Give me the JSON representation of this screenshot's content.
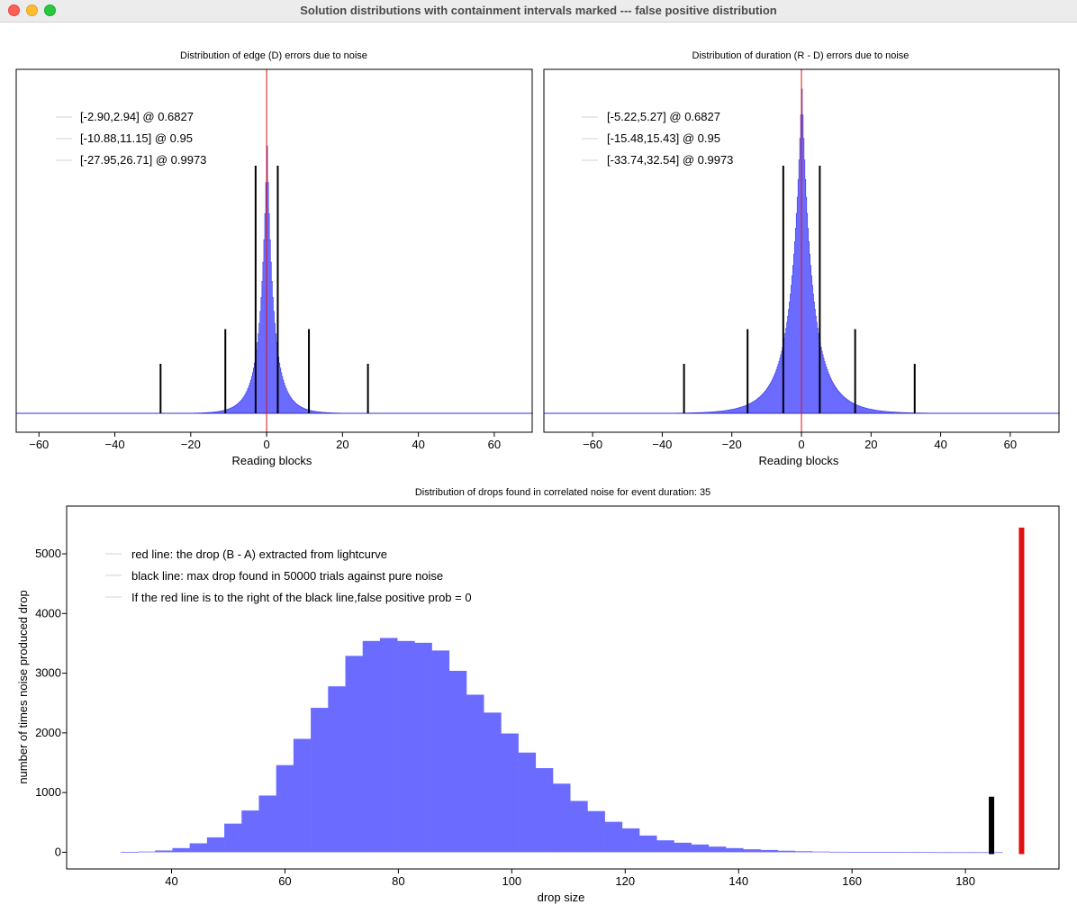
{
  "window": {
    "title": "Solution distributions with containment intervals marked --- false positive distribution"
  },
  "colors": {
    "histogram_fill": "#6b6bff",
    "histogram_edge": "#4040e0",
    "red_line": "#e01010",
    "black_line": "#000000",
    "legend_swatch": "#d0d0e0"
  },
  "chart_data": [
    {
      "type": "bar",
      "title": "Distribution of edge (D) errors due to noise",
      "xlabel": "Reading blocks",
      "ylabel": "",
      "xlim": [
        -66,
        70
      ],
      "xticks": [
        -60,
        -40,
        -20,
        0,
        20,
        40,
        60
      ],
      "xtick_labels": [
        "−60",
        "−40",
        "−20",
        "0",
        "20",
        "40",
        "60"
      ],
      "y_axis_visible": false,
      "distribution": {
        "center": 0.0,
        "peak_relative_to_interval_line": 1.08,
        "scale_core": 1.3,
        "scale_tail": 3.2
      },
      "center_line": {
        "x": 0,
        "color": "red"
      },
      "interval_lines": [
        {
          "low": -2.9,
          "high": 2.94,
          "confidence": 0.6827,
          "relative_height": 1.0
        },
        {
          "low": -10.88,
          "high": 11.15,
          "confidence": 0.95,
          "relative_height": 0.34
        },
        {
          "low": -27.95,
          "high": 26.71,
          "confidence": 0.9973,
          "relative_height": 0.2
        }
      ],
      "legend": [
        "[-2.90,2.94] @ 0.6827",
        "[-10.88,11.15] @ 0.95",
        "[-27.95,26.71] @ 0.9973"
      ]
    },
    {
      "type": "bar",
      "title": "Distribution of duration (R - D) errors due to noise",
      "xlabel": "Reading blocks",
      "ylabel": "",
      "xlim": [
        -74,
        74
      ],
      "xticks": [
        -60,
        -40,
        -20,
        0,
        20,
        40,
        60
      ],
      "xtick_labels": [
        "−60",
        "−40",
        "−20",
        "0",
        "20",
        "40",
        "60"
      ],
      "y_axis_visible": false,
      "distribution": {
        "center": 0.0,
        "peak_relative_to_interval_line": 1.31,
        "scale_core": 2.3,
        "scale_tail": 5.8
      },
      "center_line": {
        "x": 0,
        "color": "red"
      },
      "interval_lines": [
        {
          "low": -5.22,
          "high": 5.27,
          "confidence": 0.6827,
          "relative_height": 1.0
        },
        {
          "low": -15.48,
          "high": 15.43,
          "confidence": 0.95,
          "relative_height": 0.34
        },
        {
          "low": -33.74,
          "high": 32.54,
          "confidence": 0.9973,
          "relative_height": 0.2
        }
      ],
      "legend": [
        "[-5.22,5.27] @ 0.6827",
        "[-15.48,15.43] @ 0.95",
        "[-33.74,32.54] @ 0.9973"
      ]
    },
    {
      "type": "bar",
      "title": "Distribution of drops found in correlated noise for event duration: 35",
      "xlabel": "drop size",
      "ylabel": "number of times noise produced drop",
      "xlim": [
        21.5,
        196.5
      ],
      "ylim": [
        -280,
        5800
      ],
      "xticks": [
        40,
        60,
        80,
        100,
        120,
        140,
        160,
        180
      ],
      "yticks": [
        0,
        1000,
        2000,
        3000,
        4000,
        5000
      ],
      "bins": {
        "start": 31,
        "width": 3.05,
        "counts": [
          5,
          12,
          30,
          70,
          150,
          250,
          480,
          700,
          950,
          1460,
          1900,
          2420,
          2780,
          3290,
          3540,
          3590,
          3540,
          3510,
          3380,
          3040,
          2640,
          2340,
          1990,
          1670,
          1410,
          1150,
          860,
          690,
          510,
          400,
          280,
          200,
          160,
          130,
          95,
          70,
          50,
          38,
          26,
          18,
          12,
          8,
          6,
          5,
          4,
          3,
          3,
          2,
          2,
          2,
          1
        ]
      },
      "black_line": {
        "x": 184.6,
        "y_top": 930
      },
      "red_line": {
        "x": 189.9,
        "y_top": 5440
      },
      "legend": [
        "red line: the drop (B - A) extracted from lightcurve",
        "black line: max drop found in 50000 trials against pure noise",
        "If the red line is to the right of the black line,false positive prob = 0"
      ]
    }
  ]
}
